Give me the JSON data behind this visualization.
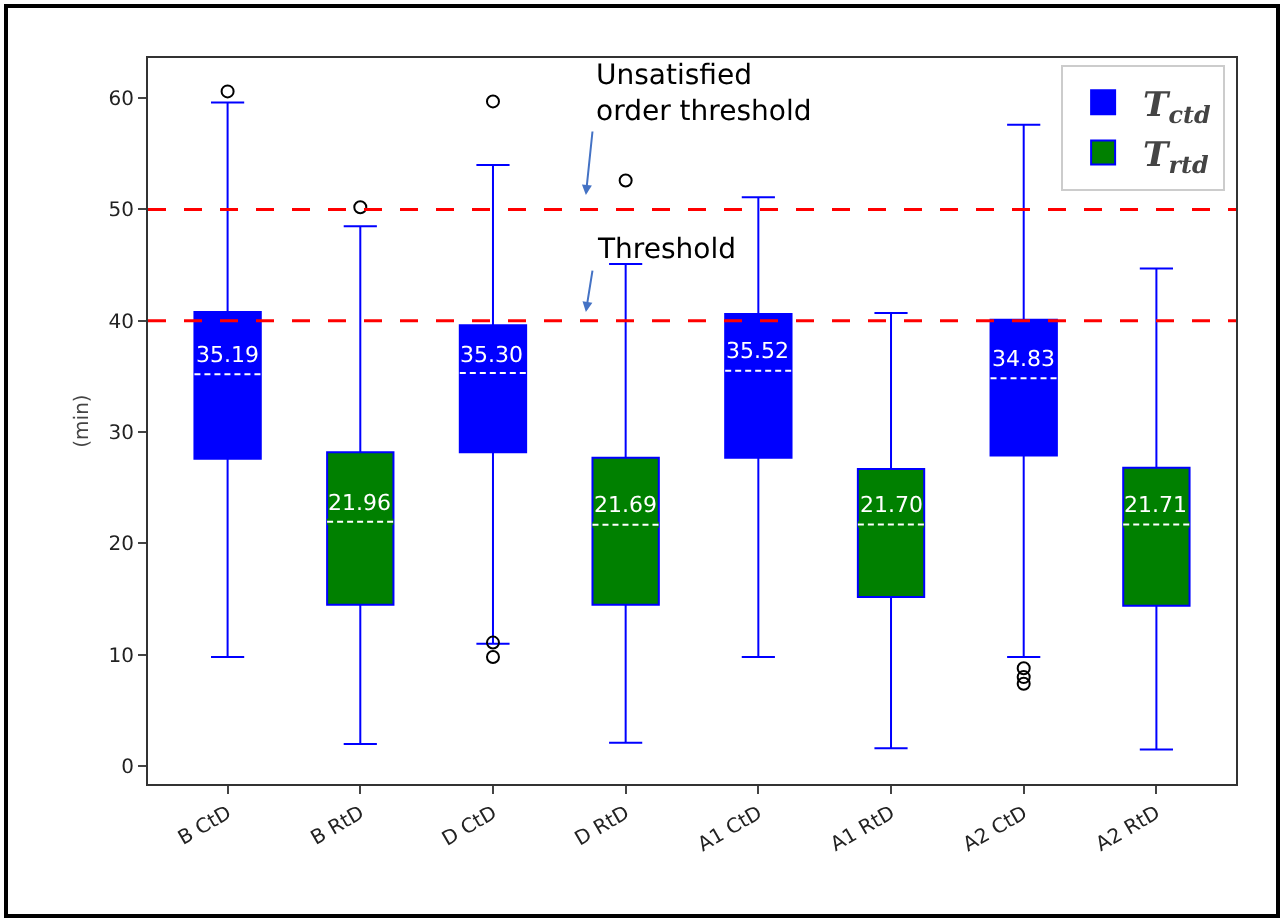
{
  "chart_data": {
    "type": "box",
    "categories": [
      "B CtD",
      "B RtD",
      "D CtD",
      "D RtD",
      "A1 CtD",
      "A1 RtD",
      "A2 CtD",
      "A2 RtD"
    ],
    "ylabel": "(min)",
    "ylim": [
      -1.6,
      63.6
    ],
    "yticks": [
      0,
      10,
      20,
      30,
      40,
      50,
      60
    ],
    "grid": false,
    "legend": "top right",
    "series": [
      {
        "name": "T$_{ctd}$",
        "color": "#0000ff",
        "boxes": [
          {
            "low": 9.8,
            "q1": 27.6,
            "median": 35.19,
            "q3": 40.8,
            "high": 59.6,
            "outliers": [
              60.6
            ]
          },
          null,
          {
            "low": 11.0,
            "q1": 28.2,
            "median": 35.3,
            "q3": 39.6,
            "high": 54.0,
            "outliers": [
              59.7,
              11.1,
              9.8
            ]
          },
          null,
          {
            "low": 9.8,
            "q1": 27.7,
            "median": 35.52,
            "q3": 40.6,
            "high": 51.1
          },
          null,
          {
            "low": 9.8,
            "q1": 27.9,
            "median": 34.83,
            "q3": 40.1,
            "high": 57.6,
            "outliers": [
              8.8,
              8.0,
              7.4
            ]
          },
          null
        ],
        "value_labels": [
          "35.19",
          null,
          "35.30",
          null,
          "35.52",
          null,
          "34.83",
          null
        ]
      },
      {
        "name": "T$_{rtd}$",
        "color": "#008000",
        "boxes": [
          null,
          {
            "low": 2.0,
            "q1": 14.5,
            "median": 21.96,
            "q3": 28.2,
            "high": 48.5,
            "outliers": [
              50.2
            ]
          },
          null,
          {
            "low": 2.1,
            "q1": 14.5,
            "median": 21.69,
            "q3": 27.7,
            "high": 45.1,
            "outliers": [
              52.6
            ]
          },
          null,
          {
            "low": 1.6,
            "q1": 15.2,
            "median": 21.7,
            "q3": 26.7,
            "high": 40.7
          },
          null,
          {
            "low": 1.5,
            "q1": 14.4,
            "median": 21.71,
            "q3": 26.8,
            "high": 44.7
          }
        ],
        "value_labels": [
          null,
          "21.96",
          null,
          "21.69",
          null,
          "21.70",
          null,
          "21.71"
        ]
      }
    ],
    "ref_lines": [
      {
        "axis": "y",
        "value": 50,
        "label": "Unsatisfied\norder threshold",
        "color": "#ff0000",
        "line_style": "dashed"
      },
      {
        "axis": "y",
        "value": 40,
        "label": "Threshold",
        "color": "#ff0000",
        "line_style": "dashed"
      }
    ]
  }
}
